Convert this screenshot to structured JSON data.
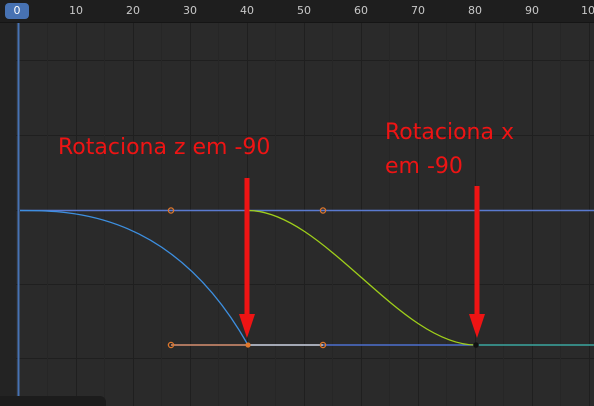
{
  "timeline": {
    "current_frame": "0",
    "tick_labels": [
      "10",
      "20",
      "30",
      "40",
      "50",
      "60",
      "70",
      "80",
      "90",
      "10"
    ]
  },
  "annotations": {
    "rotate_z": "Rotaciona z em -90",
    "rotate_x_line1": "Rotaciona x",
    "rotate_x_line2": "em -90"
  },
  "colors": {
    "background": "#2a2a2a",
    "ruler": "#1e1e1e",
    "playhead": "#4772b3",
    "curve_z": "#3d8fe0",
    "curve_x": "#9fcf1a",
    "flat_curve": "#5a7ad0",
    "handle": "#e0782c",
    "annotation": "#ee1414"
  },
  "icons": [
    "keyframe-icon",
    "bezier-handle-icon",
    "arrow-down-icon"
  ]
}
